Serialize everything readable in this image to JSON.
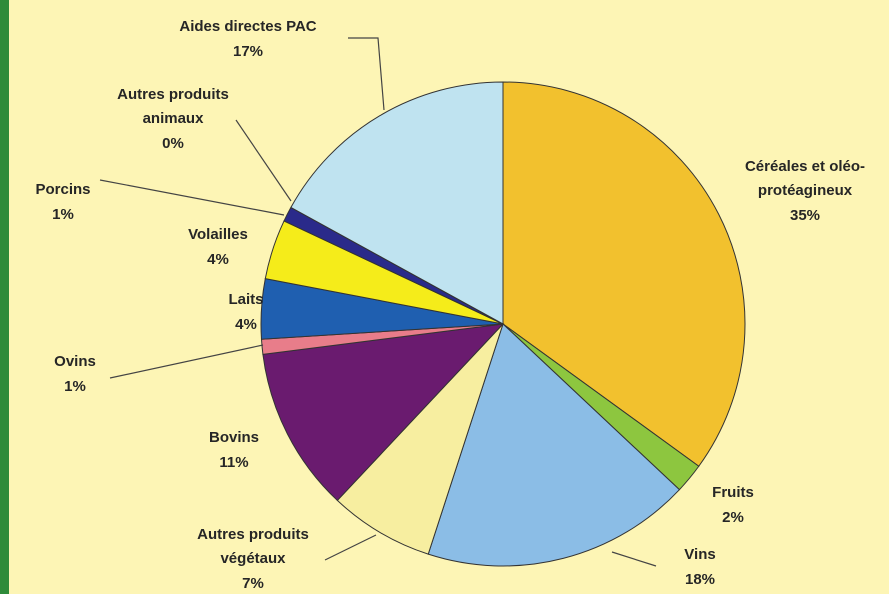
{
  "chart_data": {
    "type": "pie",
    "categories": [
      [
        "Céréales et oléo-",
        "protéagineux"
      ],
      [
        "Fruits"
      ],
      [
        "Vins"
      ],
      [
        "Autres produits",
        "végétaux"
      ],
      [
        "Bovins"
      ],
      [
        "Ovins"
      ],
      [
        "Laits"
      ],
      [
        "Volailles"
      ],
      [
        "Porcins"
      ],
      [
        "Autres produits",
        "animaux"
      ],
      [
        "Aides directes PAC"
      ]
    ],
    "values": [
      35,
      2,
      18,
      7,
      11,
      1,
      4,
      4,
      1,
      0,
      17
    ],
    "value_labels": [
      "35%",
      "2%",
      "18%",
      "7%",
      "11%",
      "1%",
      "4%",
      "4%",
      "1%",
      "0%",
      "17%"
    ],
    "colors": [
      "#f2c12e",
      "#8dc63f",
      "#8bbde6",
      "#f7eea0",
      "#6a1b6f",
      "#e87d8a",
      "#1f5fb0",
      "#f5ec1a",
      "#2a2a8a",
      "#c0248f",
      "#bfe3f0"
    ]
  }
}
